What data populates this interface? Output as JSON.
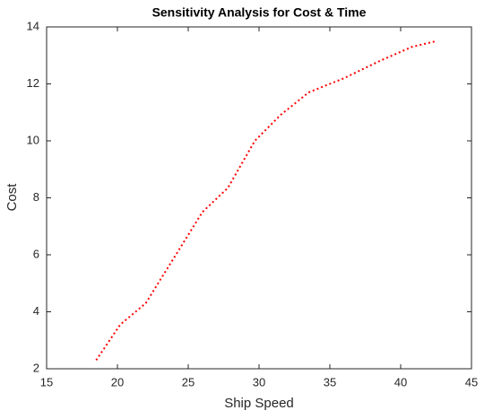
{
  "chart_data": {
    "type": "line",
    "title": "Sensitivity Analysis for Cost & Time",
    "x_label": "Ship Speed",
    "y_label": "Cost",
    "x": [
      18.5,
      20.2,
      22.0,
      24.0,
      26.0,
      27.8,
      29.7,
      31.5,
      33.5,
      36.0,
      38.5,
      40.8,
      42.5
    ],
    "values": [
      2.3,
      3.55,
      4.3,
      5.9,
      7.5,
      8.35,
      10.0,
      10.9,
      11.7,
      12.2,
      12.8,
      13.3,
      13.5
    ],
    "color": "#ff0000",
    "line_style": "dotted",
    "xlim": [
      15,
      45
    ],
    "xticks": [
      15,
      20,
      25,
      30,
      35,
      40,
      45
    ],
    "ylim": [
      2,
      14
    ],
    "yticks": [
      2,
      4,
      6,
      8,
      10,
      12,
      14
    ],
    "grid": false
  }
}
